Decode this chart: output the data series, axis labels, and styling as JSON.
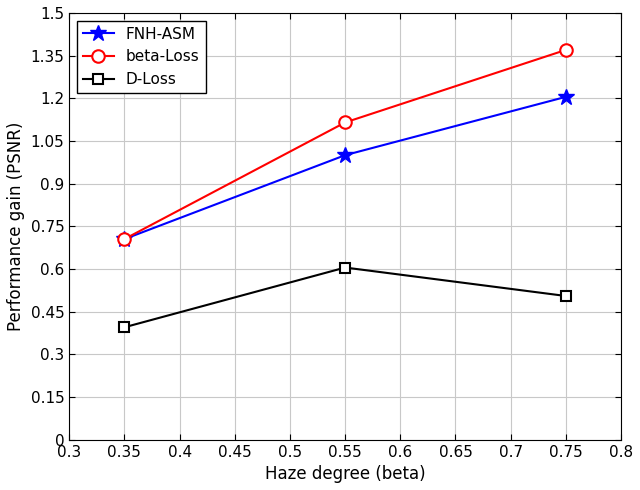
{
  "x": [
    0.35,
    0.55,
    0.75
  ],
  "fnh_asm": [
    0.705,
    1.0,
    1.205
  ],
  "beta_loss": [
    0.705,
    1.115,
    1.37
  ],
  "d_loss": [
    0.395,
    0.605,
    0.505
  ],
  "fnh_asm_label": "FNH-ASM",
  "beta_loss_label": "beta-Loss",
  "d_loss_label": "D-Loss",
  "fnh_asm_color": "#0000FF",
  "beta_loss_color": "#FF0000",
  "d_loss_color": "#000000",
  "xlabel": "Haze degree (beta)",
  "ylabel": "Performance gain (PSNR)",
  "xlim": [
    0.3,
    0.8
  ],
  "ylim": [
    0,
    1.5
  ],
  "xticks": [
    0.3,
    0.35,
    0.4,
    0.45,
    0.5,
    0.55,
    0.6,
    0.65,
    0.7,
    0.75,
    0.8
  ],
  "yticks": [
    0,
    0.15,
    0.3,
    0.45,
    0.6,
    0.75,
    0.9,
    1.05,
    1.2,
    1.35,
    1.5
  ],
  "grid_color": "#C8C8C8",
  "linewidth": 1.5,
  "legend_loc": "upper left",
  "fig_width": 6.4,
  "fig_height": 4.9,
  "background_color": "#FFFFFF",
  "xlabel_fontsize": 12,
  "ylabel_fontsize": 12,
  "tick_fontsize": 11,
  "legend_fontsize": 11
}
